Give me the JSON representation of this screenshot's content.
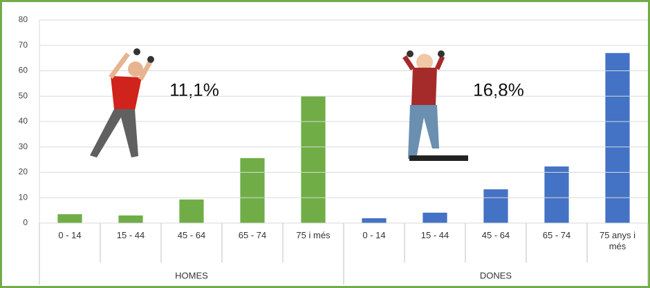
{
  "chart_data": {
    "type": "bar",
    "groups": [
      {
        "name": "HOMES",
        "color": "#70ad47",
        "categories": [
          "0 - 14",
          "15 - 44",
          "45 - 64",
          "65 - 74",
          "75 i més"
        ],
        "values": [
          3.5,
          3.0,
          9.3,
          25.6,
          50
        ],
        "annotation": "11,1%"
      },
      {
        "name": "DONES",
        "color": "#4472c4",
        "categories": [
          "0 - 14",
          "15 - 44",
          "45 - 64",
          "65 - 74",
          "75 anys i més"
        ],
        "values": [
          1.9,
          4.1,
          13.3,
          22.3,
          67
        ],
        "annotation": "16,8%"
      }
    ],
    "ylim": [
      0,
      80
    ],
    "yticks": [
      0,
      10,
      20,
      30,
      40,
      50,
      60,
      70,
      80
    ],
    "grid": true
  }
}
